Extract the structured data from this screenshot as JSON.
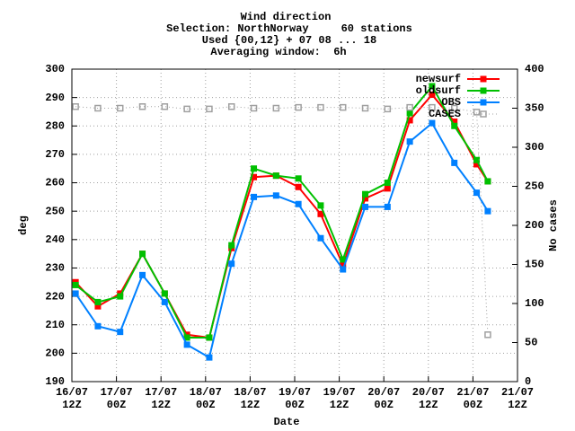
{
  "chart_data": {
    "type": "line",
    "title": [
      "Wind direction",
      "Selection: NorthNorway     60 stations",
      "Used {00,12} + 07 08 ... 18",
      "Averaging window:  6h"
    ],
    "xlabel": "Date",
    "ylabel": "deg",
    "y2label": "No cases",
    "x": [
      1,
      7,
      13,
      19,
      25,
      31,
      37,
      43,
      49,
      55,
      61,
      67,
      73,
      79,
      85,
      91,
      97,
      103,
      109,
      112
    ],
    "xlim": [
      0,
      120
    ],
    "xticks": [
      {
        "value": 0,
        "label": [
          "16/07",
          "12Z"
        ]
      },
      {
        "value": 12,
        "label": [
          "17/07",
          "00Z"
        ]
      },
      {
        "value": 24,
        "label": [
          "17/07",
          "12Z"
        ]
      },
      {
        "value": 36,
        "label": [
          "18/07",
          "00Z"
        ]
      },
      {
        "value": 48,
        "label": [
          "18/07",
          "12Z"
        ]
      },
      {
        "value": 60,
        "label": [
          "19/07",
          "00Z"
        ]
      },
      {
        "value": 72,
        "label": [
          "19/07",
          "12Z"
        ]
      },
      {
        "value": 84,
        "label": [
          "20/07",
          "00Z"
        ]
      },
      {
        "value": 96,
        "label": [
          "20/07",
          "12Z"
        ]
      },
      {
        "value": 108,
        "label": [
          "21/07",
          "00Z"
        ]
      },
      {
        "value": 120,
        "label": [
          "21/07",
          "12Z"
        ]
      }
    ],
    "ylim": [
      190,
      300
    ],
    "yticks": [
      190,
      200,
      210,
      220,
      230,
      240,
      250,
      260,
      270,
      280,
      290,
      300
    ],
    "y2lim": [
      0,
      400
    ],
    "y2ticks": [
      0,
      50,
      100,
      150,
      200,
      250,
      300,
      350,
      400
    ],
    "grid": true,
    "legend": "upper right",
    "series": [
      {
        "name": "newsurf",
        "color": "#ff0000",
        "values": [
          225,
          216.5,
          221,
          235,
          221,
          206.5,
          205.5,
          237,
          262,
          262.5,
          258.5,
          249,
          231,
          254.5,
          258,
          282,
          291,
          281.5,
          266.5,
          260.5
        ]
      },
      {
        "name": "oldsurf",
        "color": "#00c000",
        "values": [
          224,
          218,
          220,
          235,
          221,
          205.5,
          205.5,
          238,
          265,
          262.5,
          261.5,
          252,
          233,
          256,
          260,
          284.5,
          294,
          280,
          268,
          260.5
        ]
      },
      {
        "name": "OBS",
        "color": "#0080ff",
        "values": [
          221,
          209.5,
          207.5,
          227.5,
          218,
          203,
          198.5,
          231.5,
          255,
          255.5,
          252.5,
          240.5,
          229.5,
          251.5,
          251.5,
          274.5,
          281,
          267,
          256.5,
          250
        ]
      },
      {
        "name": "CASES",
        "color": "#a0a0a0",
        "axis": "y2",
        "values": [
          352,
          350,
          350,
          352,
          352,
          349,
          349,
          352,
          350,
          350,
          351,
          351,
          351,
          350,
          349,
          351,
          351,
          350,
          345,
          60
        ]
      }
    ]
  }
}
